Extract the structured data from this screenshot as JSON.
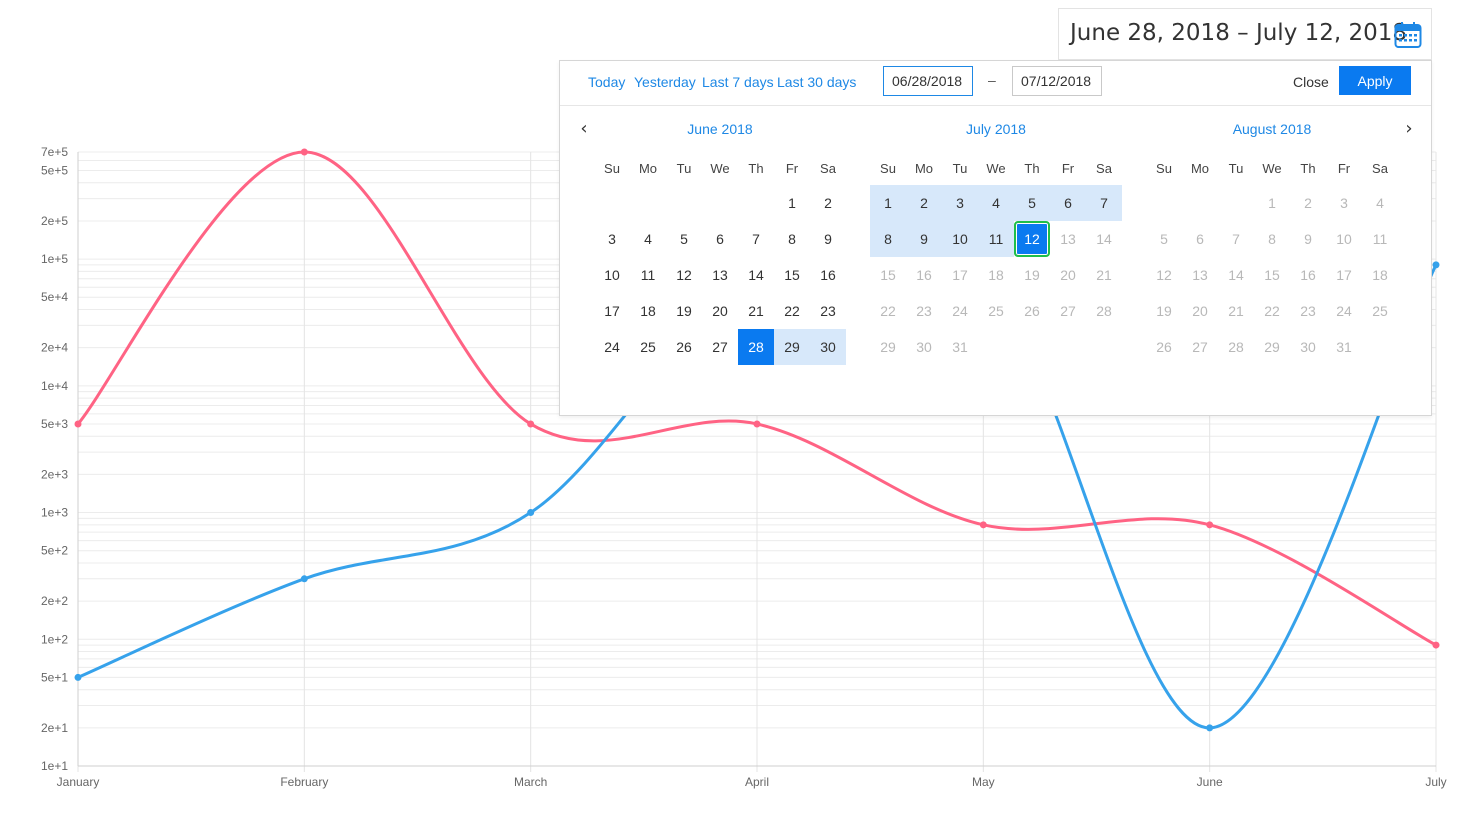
{
  "range_display": {
    "text": "June 28, 2018 – July 12, 2018",
    "icon": "calendar-icon"
  },
  "picker": {
    "presets": [
      "Today",
      "Yesterday",
      "Last 7 days",
      "Last 30 days"
    ],
    "start_input": "06/28/2018",
    "separator": "–",
    "end_input": "07/12/2018",
    "close_label": "Close",
    "apply_label": "Apply",
    "weekdays": [
      "Su",
      "Mo",
      "Tu",
      "We",
      "Th",
      "Fr",
      "Sa"
    ],
    "months": [
      {
        "title": "June 2018",
        "first_weekday": 5,
        "days": 30,
        "prev_tail": [],
        "next_days": 0,
        "selected_start": 28,
        "range": [
          28,
          30
        ],
        "disabled_from": null
      },
      {
        "title": "July 2018",
        "first_weekday": 0,
        "days": 31,
        "range": [
          1,
          11
        ],
        "selected_end": 12,
        "disabled_from": 13
      },
      {
        "title": "August 2018",
        "first_weekday": 3,
        "days": 31,
        "range": null,
        "disabled_from": 1
      }
    ],
    "colors": {
      "accent": "#0a7af0",
      "range": "#d7e8fa",
      "focus_ring": "#1fbf4a",
      "link": "#1e88e5"
    }
  },
  "chart_data": {
    "type": "line",
    "y_scale": "log",
    "x": [
      "January",
      "February",
      "March",
      "April",
      "May",
      "June",
      "July"
    ],
    "y_ticks": [
      "7e+5",
      "5e+5",
      "2e+5",
      "1e+5",
      "5e+4",
      "2e+4",
      "1e+4",
      "5e+3",
      "2e+3",
      "1e+3",
      "5e+2",
      "2e+2",
      "1e+2",
      "5e+1",
      "2e+1",
      "1e+1"
    ],
    "ylim": [
      10,
      700000
    ],
    "grid": true,
    "series": [
      {
        "color": "#ff6384",
        "values": [
          5000,
          700000,
          5000,
          5000,
          800,
          800,
          90
        ]
      },
      {
        "color": "#36a2eb",
        "values": [
          50,
          300,
          1000,
          70000,
          80000,
          20,
          90000
        ]
      }
    ]
  }
}
